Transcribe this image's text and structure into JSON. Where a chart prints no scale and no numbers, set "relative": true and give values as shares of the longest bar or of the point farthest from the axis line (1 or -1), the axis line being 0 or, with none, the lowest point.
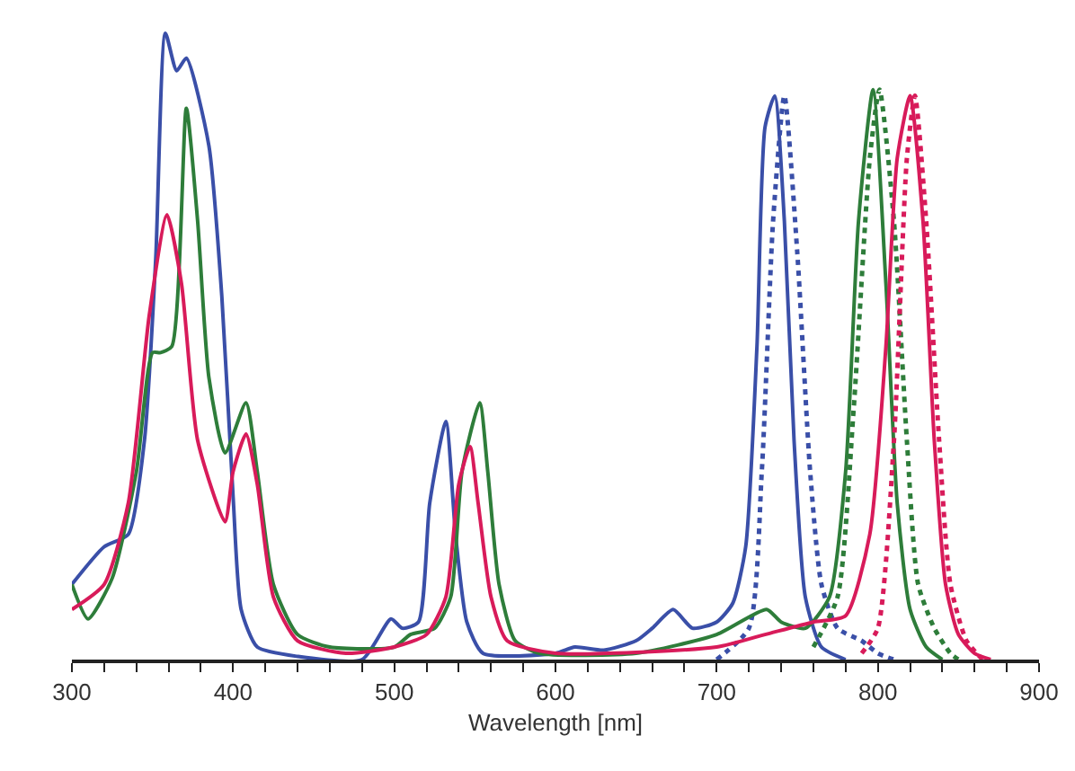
{
  "chart_data": {
    "type": "line",
    "xlabel": "Wavelength [nm]",
    "relative": true,
    "xlim": [
      300,
      900
    ],
    "xticks": [
      300,
      {
        "value": 320,
        "label": null
      },
      {
        "value": 340,
        "label": null
      },
      {
        "value": 360,
        "label": null
      },
      {
        "value": 380,
        "label": null
      },
      400,
      {
        "value": 420,
        "label": null
      },
      {
        "value": 440,
        "label": null
      },
      {
        "value": 460,
        "label": null
      },
      {
        "value": 480,
        "label": null
      },
      500,
      {
        "value": 520,
        "label": null
      },
      {
        "value": 540,
        "label": null
      },
      {
        "value": 560,
        "label": null
      },
      {
        "value": 580,
        "label": null
      },
      600,
      {
        "value": 620,
        "label": null
      },
      {
        "value": 640,
        "label": null
      },
      {
        "value": 660,
        "label": null
      },
      {
        "value": 680,
        "label": null
      },
      700,
      {
        "value": 720,
        "label": null
      },
      {
        "value": 740,
        "label": null
      },
      {
        "value": 760,
        "label": null
      },
      {
        "value": 780,
        "label": null
      },
      800,
      {
        "value": 820,
        "label": null
      },
      {
        "value": 840,
        "label": null
      },
      {
        "value": 860,
        "label": null
      },
      {
        "value": 880,
        "label": null
      },
      900
    ],
    "series": [
      {
        "color": "#3a4fa8",
        "line_style": "solid",
        "x": [
          300,
          320,
          335,
          345,
          352,
          358,
          365,
          371,
          385,
          393,
          400,
          405,
          415,
          440,
          480,
          498,
          505,
          515,
          522,
          532,
          538,
          545,
          555,
          600,
          612,
          630,
          650,
          660,
          673,
          685,
          700,
          710,
          718,
          725,
          730,
          736,
          742,
          748,
          755,
          765,
          780
        ],
        "values": [
          0.12,
          0.18,
          0.2,
          0.35,
          0.64,
          1.0,
          0.94,
          0.96,
          0.82,
          0.58,
          0.26,
          0.08,
          0.02,
          0.005,
          0.0,
          0.065,
          0.05,
          0.06,
          0.25,
          0.38,
          0.2,
          0.06,
          0.01,
          0.01,
          0.02,
          0.015,
          0.03,
          0.05,
          0.08,
          0.05,
          0.06,
          0.09,
          0.18,
          0.5,
          0.85,
          0.9,
          0.7,
          0.35,
          0.1,
          0.02,
          0.0
        ]
      },
      {
        "color": "#3a4fa8",
        "line_style": "dotted",
        "x": [
          700,
          720,
          728,
          735,
          742,
          750,
          758,
          765,
          775,
          790,
          800,
          810
        ],
        "values": [
          0.0,
          0.05,
          0.3,
          0.7,
          0.9,
          0.65,
          0.3,
          0.12,
          0.05,
          0.03,
          0.01,
          0.0
        ]
      },
      {
        "color": "#2e7d3a",
        "line_style": "solid",
        "x": [
          300,
          310,
          325,
          340,
          350,
          355,
          362,
          371,
          378,
          385,
          395,
          408,
          415,
          425,
          440,
          460,
          500,
          510,
          525,
          535,
          542,
          553,
          558,
          565,
          575,
          590,
          650,
          700,
          731,
          740,
          755,
          770,
          780,
          788,
          797,
          805,
          812,
          820,
          830,
          840
        ],
        "values": [
          0.12,
          0.065,
          0.13,
          0.3,
          0.49,
          0.49,
          0.5,
          0.88,
          0.7,
          0.45,
          0.33,
          0.41,
          0.3,
          0.12,
          0.04,
          0.02,
          0.02,
          0.04,
          0.05,
          0.1,
          0.3,
          0.41,
          0.3,
          0.12,
          0.03,
          0.01,
          0.01,
          0.04,
          0.08,
          0.06,
          0.05,
          0.1,
          0.3,
          0.7,
          0.91,
          0.6,
          0.25,
          0.08,
          0.02,
          0.0
        ]
      },
      {
        "color": "#2e7d3a",
        "line_style": "dotted",
        "x": [
          760,
          775,
          785,
          795,
          801,
          810,
          818,
          825,
          835,
          845,
          850
        ],
        "values": [
          0.02,
          0.1,
          0.4,
          0.8,
          0.91,
          0.7,
          0.35,
          0.12,
          0.05,
          0.01,
          0.0
        ]
      },
      {
        "color": "#d81b5a",
        "line_style": "solid",
        "x": [
          300,
          320,
          335,
          348,
          359,
          368,
          378,
          395,
          400,
          408,
          415,
          425,
          440,
          470,
          500,
          520,
          532,
          540,
          547,
          552,
          560,
          570,
          600,
          700,
          730,
          760,
          780,
          795,
          805,
          812,
          820,
          828,
          835,
          842,
          850,
          860,
          870
        ],
        "values": [
          0.08,
          0.12,
          0.25,
          0.55,
          0.71,
          0.6,
          0.35,
          0.22,
          0.3,
          0.36,
          0.28,
          0.1,
          0.03,
          0.01,
          0.02,
          0.04,
          0.1,
          0.28,
          0.34,
          0.25,
          0.1,
          0.03,
          0.01,
          0.02,
          0.04,
          0.06,
          0.07,
          0.2,
          0.5,
          0.8,
          0.9,
          0.7,
          0.35,
          0.12,
          0.04,
          0.01,
          0.0
        ]
      },
      {
        "color": "#d81b5a",
        "line_style": "dotted",
        "x": [
          790,
          800,
          810,
          818,
          823,
          830,
          838,
          845,
          855,
          865
        ],
        "values": [
          0.01,
          0.05,
          0.35,
          0.8,
          0.9,
          0.7,
          0.35,
          0.12,
          0.03,
          0.0
        ]
      }
    ]
  }
}
